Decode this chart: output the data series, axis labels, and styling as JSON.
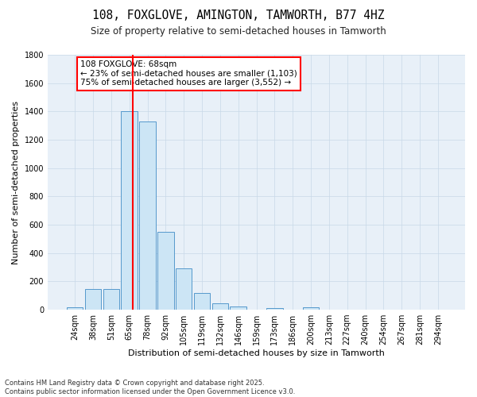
{
  "title1": "108, FOXGLOVE, AMINGTON, TAMWORTH, B77 4HZ",
  "title2": "Size of property relative to semi-detached houses in Tamworth",
  "xlabel": "Distribution of semi-detached houses by size in Tamworth",
  "ylabel": "Number of semi-detached properties",
  "categories": [
    "24sqm",
    "38sqm",
    "51sqm",
    "65sqm",
    "78sqm",
    "92sqm",
    "105sqm",
    "119sqm",
    "132sqm",
    "146sqm",
    "159sqm",
    "173sqm",
    "186sqm",
    "200sqm",
    "213sqm",
    "227sqm",
    "240sqm",
    "254sqm",
    "267sqm",
    "281sqm",
    "294sqm"
  ],
  "bar_heights": [
    20,
    145,
    145,
    1400,
    1330,
    550,
    290,
    120,
    45,
    25,
    0,
    10,
    0,
    15,
    0,
    0,
    0,
    0,
    0,
    0,
    0
  ],
  "bar_fill": "#cce5f5",
  "bar_edge": "#5599cc",
  "bar_lw": 0.7,
  "vline_color": "red",
  "vline_lw": 1.5,
  "vline_pos": 3.21,
  "annotation_text": "108 FOXGLOVE: 68sqm\n← 23% of semi-detached houses are smaller (1,103)\n75% of semi-detached houses are larger (3,552) →",
  "annotation_fontsize": 7.5,
  "footnote": "Contains HM Land Registry data © Crown copyright and database right 2025.\nContains public sector information licensed under the Open Government Licence v3.0.",
  "ylim": [
    0,
    1800
  ],
  "yticks": [
    0,
    200,
    400,
    600,
    800,
    1000,
    1200,
    1400,
    1600,
    1800
  ],
  "grid_color": "#c8d8e8",
  "bg_color": "#e8f0f8",
  "title_fontsize": 10.5,
  "subtitle_fontsize": 8.5,
  "xlabel_fontsize": 8,
  "ylabel_fontsize": 8,
  "tick_fontsize": 7
}
